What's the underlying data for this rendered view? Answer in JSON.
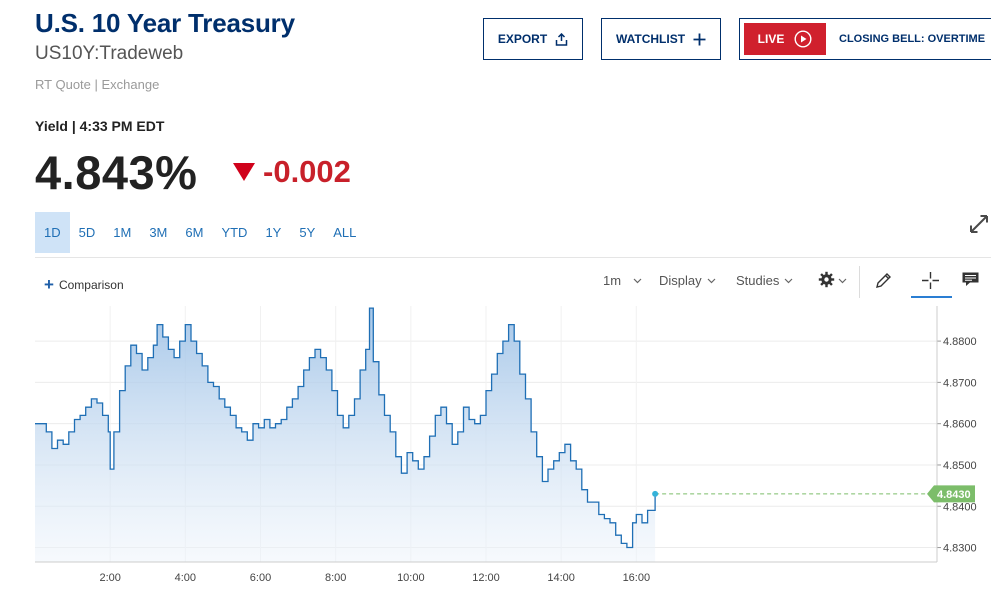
{
  "header": {
    "title": "U.S. 10 Year Treasury",
    "symbol": "US10Y:Tradeweb",
    "source": "RT Quote | Exchange"
  },
  "quote": {
    "label": "Yield | 4:33 PM EDT",
    "price": "4.843%",
    "change": "-0.002",
    "direction": "down",
    "down_color": "#d0021b"
  },
  "actions": {
    "export_label": "EXPORT",
    "watchlist_label": "WATCHLIST",
    "live_label": "LIVE",
    "live_show": "CLOSING BELL: OVERTIME"
  },
  "ranges": {
    "items": [
      "1D",
      "5D",
      "1M",
      "3M",
      "6M",
      "YTD",
      "1Y",
      "5Y",
      "ALL"
    ],
    "active": "1D"
  },
  "toolbar": {
    "comparison_label": "Comparison",
    "interval": "1m",
    "display_label": "Display",
    "studies_label": "Studies"
  },
  "chart_data": {
    "type": "area",
    "y_tick_labels": [
      "4.8300",
      "4.8400",
      "4.8500",
      "4.8600",
      "4.8700",
      "4.8800"
    ],
    "x_tick_labels": [
      "2:00",
      "4:00",
      "6:00",
      "8:00",
      "10:00",
      "12:00",
      "14:00",
      "16:00"
    ],
    "last_label": "4.8430",
    "last_value": 4.843,
    "ylim": [
      4.8265,
      4.8885
    ],
    "xlim": [
      0.0,
      24.0
    ],
    "line_color": "#1f6fb5",
    "last_color": "#7cbd6a",
    "grid": true,
    "series": [
      {
        "x": [
          0.0,
          0.15,
          0.3,
          0.45,
          0.6,
          0.75,
          0.9,
          1.05,
          1.2,
          1.35,
          1.5,
          1.65,
          1.8,
          1.95,
          2.0,
          2.1,
          2.25,
          2.4,
          2.55,
          2.7,
          2.85,
          3.0,
          3.15,
          3.25,
          3.4,
          3.55,
          3.7,
          3.85,
          4.0,
          4.15,
          4.3,
          4.45,
          4.6,
          4.75,
          4.9,
          5.05,
          5.2,
          5.35,
          5.5,
          5.65,
          5.8,
          5.95,
          6.1,
          6.25,
          6.4,
          6.55,
          6.7,
          6.85,
          7.0,
          7.15,
          7.3,
          7.45,
          7.6,
          7.75,
          7.9,
          8.05,
          8.2,
          8.35,
          8.5,
          8.65,
          8.8,
          8.9,
          9.0,
          9.15,
          9.3,
          9.45,
          9.6,
          9.75,
          9.9,
          10.05,
          10.2,
          10.35,
          10.5,
          10.65,
          10.8,
          10.95,
          11.1,
          11.25,
          11.4,
          11.55,
          11.7,
          11.85,
          12.0,
          12.15,
          12.3,
          12.45,
          12.6,
          12.75,
          12.9,
          13.05,
          13.2,
          13.35,
          13.5,
          13.65,
          13.8,
          13.95,
          14.1,
          14.25,
          14.4,
          14.55,
          14.7,
          14.85,
          15.0,
          15.15,
          15.3,
          15.45,
          15.6,
          15.75,
          15.9,
          16.0,
          16.15,
          16.3,
          16.5
        ],
        "values": [
          4.86,
          4.86,
          4.858,
          4.854,
          4.856,
          4.855,
          4.858,
          4.861,
          4.862,
          4.864,
          4.866,
          4.865,
          4.862,
          4.858,
          4.849,
          4.858,
          4.868,
          4.874,
          4.879,
          4.877,
          4.873,
          4.876,
          4.879,
          4.884,
          4.881,
          4.878,
          4.876,
          4.88,
          4.884,
          4.88,
          4.877,
          4.874,
          4.87,
          4.869,
          4.866,
          4.864,
          4.862,
          4.859,
          4.858,
          4.856,
          4.86,
          4.859,
          4.861,
          4.859,
          4.86,
          4.861,
          4.864,
          4.866,
          4.869,
          4.873,
          4.876,
          4.878,
          4.876,
          4.873,
          4.868,
          4.862,
          4.859,
          4.862,
          4.866,
          4.873,
          4.878,
          4.888,
          4.875,
          4.867,
          4.862,
          4.858,
          4.852,
          4.848,
          4.853,
          4.851,
          4.849,
          4.852,
          4.857,
          4.862,
          4.864,
          4.86,
          4.855,
          4.858,
          4.864,
          4.861,
          4.86,
          4.862,
          4.868,
          4.872,
          4.877,
          4.88,
          4.884,
          4.88,
          4.872,
          4.866,
          4.858,
          4.852,
          4.846,
          4.849,
          4.851,
          4.853,
          4.855,
          4.851,
          4.849,
          4.844,
          4.841,
          4.841,
          4.838,
          4.837,
          4.836,
          4.833,
          4.831,
          4.83,
          4.836,
          4.838,
          4.836,
          4.839,
          4.843
        ]
      }
    ]
  },
  "colors": {
    "brand_navy": "#002f6c",
    "accent_blue": "#1f6fb5",
    "live_red": "#d0202d"
  }
}
